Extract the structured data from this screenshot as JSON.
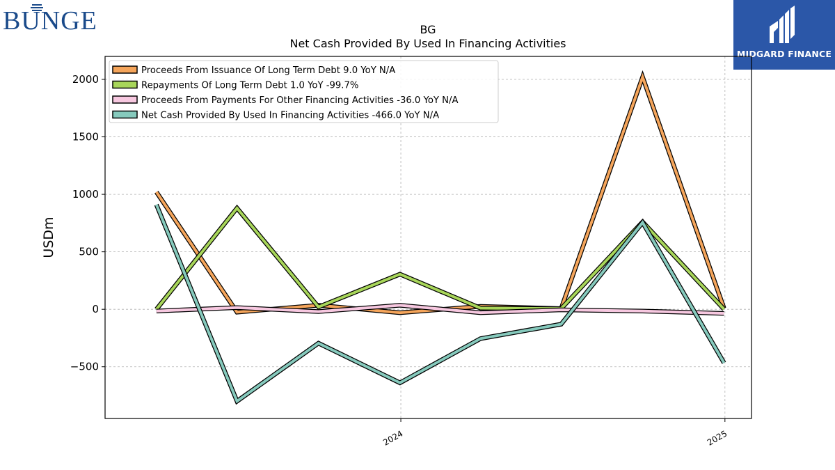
{
  "logos": {
    "left_text": "BUNGE",
    "right_text": "MIDGARD FINANCE"
  },
  "chart_data": {
    "type": "line",
    "title": "BG",
    "subtitle": "Net Cash Provided By Used In Financing Activities",
    "ylabel": "USDm",
    "xlabel": "",
    "ylim": [
      -950,
      2200
    ],
    "yticks": [
      -500,
      0,
      500,
      1000,
      1500,
      2000
    ],
    "ytick_labels": [
      "−500",
      "0",
      "500",
      "1000",
      "1500",
      "2000"
    ],
    "x": [
      "2023-03-31",
      "2023-06-30",
      "2023-09-30",
      "2023-12-31",
      "2024-03-31",
      "2024-06-30",
      "2024-09-30",
      "2024-12-31"
    ],
    "xlim": [
      "2023-02-01",
      "2025-01-31"
    ],
    "xticks": [
      {
        "date": "2024-01-01",
        "label": "2024"
      },
      {
        "date": "2025-01-01",
        "label": "2025"
      }
    ],
    "grid": true,
    "legend_position": "upper-left",
    "series": [
      {
        "name": "Proceeds From Issuance Of Long Term Debt  9.0 YoY N/A",
        "color": "#f5a55b",
        "values": [
          1020,
          -25,
          35,
          -30,
          25,
          5,
          2020,
          9
        ]
      },
      {
        "name": "Repayments Of Long Term Debt  1.0 YoY -99.7%",
        "color": "#a8d65a",
        "values": [
          0,
          880,
          20,
          305,
          10,
          5,
          760,
          1
        ]
      },
      {
        "name": "Proceeds From Payments For Other Financing Activities  -36.0 YoY N/A",
        "color": "#f7c8e0",
        "values": [
          -15,
          15,
          -20,
          35,
          -30,
          -5,
          -15,
          -36
        ]
      },
      {
        "name": "Net Cash Provided By Used In Financing Activities  -466.0 YoY N/A",
        "color": "#86cabd",
        "values": [
          910,
          -800,
          -295,
          -640,
          -255,
          -130,
          755,
          -466
        ]
      }
    ]
  }
}
